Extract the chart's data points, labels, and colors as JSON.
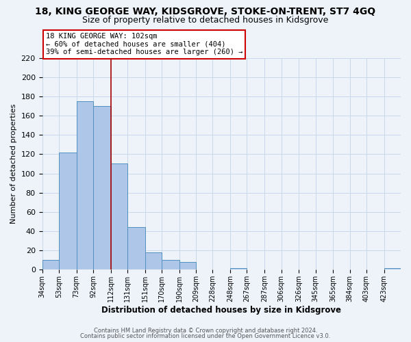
{
  "title": "18, KING GEORGE WAY, KIDSGROVE, STOKE-ON-TRENT, ST7 4GQ",
  "subtitle": "Size of property relative to detached houses in Kidsgrove",
  "xlabel": "Distribution of detached houses by size in Kidsgrove",
  "ylabel": "Number of detached properties",
  "bar_labels": [
    "34sqm",
    "53sqm",
    "73sqm",
    "92sqm",
    "112sqm",
    "131sqm",
    "151sqm",
    "170sqm",
    "190sqm",
    "209sqm",
    "228sqm",
    "248sqm",
    "267sqm",
    "287sqm",
    "306sqm",
    "326sqm",
    "345sqm",
    "365sqm",
    "384sqm",
    "403sqm",
    "423sqm"
  ],
  "bar_values": [
    10,
    122,
    175,
    170,
    110,
    44,
    18,
    10,
    8,
    0,
    0,
    2,
    0,
    0,
    0,
    0,
    0,
    0,
    0,
    0,
    2
  ],
  "bar_color": "#aec6e8",
  "bar_edge_color": "#5090c0",
  "grid_color": "#c8d8ea",
  "background_color": "#eef3fa",
  "vline_color": "#aa0000",
  "bin_edges": [
    34,
    53,
    73,
    92,
    112,
    131,
    151,
    170,
    190,
    209,
    228,
    248,
    267,
    287,
    306,
    326,
    345,
    365,
    384,
    403,
    423,
    442
  ],
  "annotation_box_color": "#ffffff",
  "annotation_border_color": "#cc0000",
  "ylim": [
    0,
    220
  ],
  "yticks": [
    0,
    20,
    40,
    60,
    80,
    100,
    120,
    140,
    160,
    180,
    200,
    220
  ],
  "footer1": "Contains HM Land Registry data © Crown copyright and database right 2024.",
  "footer2": "Contains public sector information licensed under the Open Government Licence v3.0.",
  "title_fontsize": 10,
  "subtitle_fontsize": 9,
  "vline_x": 112
}
